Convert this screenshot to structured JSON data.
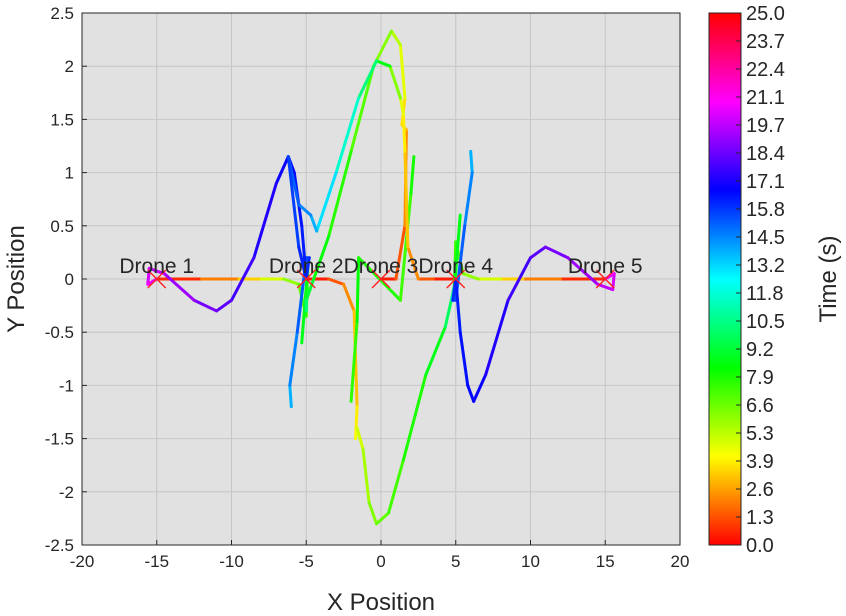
{
  "chart_data": {
    "type": "line",
    "title": "",
    "xlabel": "X Position",
    "ylabel": "Y Position",
    "xlim": [
      -20,
      20
    ],
    "ylim": [
      -2.5,
      2.5
    ],
    "x_ticks": [
      -20,
      -15,
      -10,
      -5,
      0,
      5,
      10,
      15,
      20
    ],
    "y_ticks": [
      -2.5,
      -2,
      -1.5,
      -1,
      -0.5,
      0,
      0.5,
      1,
      1.5,
      2,
      2.5
    ],
    "grid": true,
    "colorbar": {
      "label": "Time (s)",
      "colormap": "hsv",
      "range": [
        0,
        25
      ],
      "ticks": [
        "25.0",
        "23.7",
        "22.4",
        "21.1",
        "19.7",
        "18.4",
        "17.1",
        "15.8",
        "14.5",
        "13.2",
        "11.8",
        "10.5",
        "9.2",
        "7.9",
        "6.6",
        "5.3",
        "3.9",
        "2.6",
        "1.3",
        "0.0"
      ]
    },
    "series": [
      {
        "name": "Drone 1",
        "start": [
          -15,
          0
        ],
        "points": [
          {
            "x": -15.0,
            "y": 0.0,
            "t": 0.0
          },
          {
            "x": -12.0,
            "y": 0.0,
            "t": 1.5
          },
          {
            "x": -9.5,
            "y": 0.0,
            "t": 3.0
          },
          {
            "x": -8.0,
            "y": 0.0,
            "t": 4.5
          },
          {
            "x": -6.5,
            "y": 0.0,
            "t": 6.0
          },
          {
            "x": -5.5,
            "y": -0.05,
            "t": 7.0
          },
          {
            "x": -5.0,
            "y": -0.35,
            "t": 7.8
          },
          {
            "x": -4.9,
            "y": 0.1,
            "t": 8.5
          },
          {
            "x": -5.3,
            "y": -0.6,
            "t": 10.5
          },
          {
            "x": -6.0,
            "y": -1.2,
            "t": 14.5
          },
          {
            "x": -6.1,
            "y": -1.0,
            "t": 15.5
          },
          {
            "x": -5.6,
            "y": -0.5,
            "t": 16.2
          },
          {
            "x": -5.0,
            "y": 0.2,
            "t": 16.8
          },
          {
            "x": -4.8,
            "y": 0.2,
            "t": 17.2
          },
          {
            "x": -5.0,
            "y": 0.0,
            "t": 17.6
          },
          {
            "x": -5.3,
            "y": 0.5,
            "t": 17.8
          },
          {
            "x": -5.8,
            "y": 1.0,
            "t": 18.0
          },
          {
            "x": -6.2,
            "y": 1.15,
            "t": 18.2
          },
          {
            "x": -7.0,
            "y": 0.9,
            "t": 18.5
          },
          {
            "x": -8.5,
            "y": 0.2,
            "t": 19.0
          },
          {
            "x": -10.0,
            "y": -0.2,
            "t": 19.6
          },
          {
            "x": -11.0,
            "y": -0.3,
            "t": 20.0
          },
          {
            "x": -12.5,
            "y": -0.2,
            "t": 20.6
          },
          {
            "x": -14.5,
            "y": 0.05,
            "t": 21.4
          },
          {
            "x": -15.5,
            "y": 0.1,
            "t": 21.8
          },
          {
            "x": -15.6,
            "y": -0.05,
            "t": 22.2
          },
          {
            "x": -15.0,
            "y": 0.0,
            "t": 22.6
          }
        ]
      },
      {
        "name": "Drone 2",
        "start": [
          -5,
          0
        ],
        "points": [
          {
            "x": -5.0,
            "y": 0.0,
            "t": 0.0
          },
          {
            "x": -3.5,
            "y": 0.0,
            "t": 1.0
          },
          {
            "x": -2.5,
            "y": -0.05,
            "t": 2.0
          },
          {
            "x": -1.8,
            "y": -0.3,
            "t": 3.0
          },
          {
            "x": -1.6,
            "y": -1.2,
            "t": 4.0
          },
          {
            "x": -1.7,
            "y": -1.5,
            "t": 4.5
          },
          {
            "x": -1.6,
            "y": -1.4,
            "t": 5.0
          },
          {
            "x": -1.2,
            "y": -1.6,
            "t": 5.8
          },
          {
            "x": -0.8,
            "y": -2.1,
            "t": 6.5
          },
          {
            "x": -0.3,
            "y": -2.3,
            "t": 7.0
          },
          {
            "x": 0.5,
            "y": -2.2,
            "t": 7.6
          },
          {
            "x": 1.5,
            "y": -1.7,
            "t": 8.2
          },
          {
            "x": 3.0,
            "y": -0.9,
            "t": 9.0
          },
          {
            "x": 4.3,
            "y": -0.45,
            "t": 10.0
          },
          {
            "x": 4.7,
            "y": -0.2,
            "t": 11.5
          },
          {
            "x": 5.0,
            "y": 0.0,
            "t": 12.0
          }
        ]
      },
      {
        "name": "Drone 3",
        "start": [
          0,
          0
        ],
        "points": [
          {
            "x": 0.0,
            "y": 0.0,
            "t": 0.0
          },
          {
            "x": 1.0,
            "y": 0.0,
            "t": 1.0
          },
          {
            "x": 1.6,
            "y": 0.5,
            "t": 2.0
          },
          {
            "x": 1.7,
            "y": 1.4,
            "t": 3.0
          },
          {
            "x": 1.4,
            "y": 1.45,
            "t": 3.5
          },
          {
            "x": 1.6,
            "y": 1.7,
            "t": 4.5
          },
          {
            "x": 1.3,
            "y": 2.2,
            "t": 5.5
          },
          {
            "x": 0.7,
            "y": 2.33,
            "t": 6.2
          },
          {
            "x": -0.5,
            "y": 2.0,
            "t": 7.2
          },
          {
            "x": -2.0,
            "y": 1.2,
            "t": 8.0
          },
          {
            "x": -3.5,
            "y": 0.4,
            "t": 8.8
          },
          {
            "x": -4.5,
            "y": 0.0,
            "t": 9.5
          },
          {
            "x": -5.0,
            "y": -0.2,
            "t": 10.5
          },
          {
            "x": -5.0,
            "y": -0.3,
            "t": 12.0
          },
          {
            "x": -2.0,
            "y": -1.15,
            "t": 7.8
          },
          {
            "x": -1.6,
            "y": -0.4,
            "t": 8.6
          },
          {
            "x": -1.5,
            "y": 0.2,
            "t": 9.6
          },
          {
            "x": 1.3,
            "y": -0.2,
            "t": 7.5
          },
          {
            "x": 2.0,
            "y": 0.8,
            "t": 8.5
          },
          {
            "x": 2.2,
            "y": 1.15,
            "t": 9.0
          }
        ]
      },
      {
        "name": "Drone 4",
        "start": [
          5,
          0
        ],
        "points": [
          {
            "x": 5.0,
            "y": 0.0,
            "t": 0.0
          },
          {
            "x": 3.5,
            "y": 0.0,
            "t": 1.0
          },
          {
            "x": 2.5,
            "y": 0.0,
            "t": 2.0
          },
          {
            "x": 1.8,
            "y": 0.3,
            "t": 3.0
          },
          {
            "x": 1.6,
            "y": 1.2,
            "t": 4.0
          },
          {
            "x": 1.5,
            "y": 1.55,
            "t": 4.5
          },
          {
            "x": 1.3,
            "y": 1.7,
            "t": 5.5
          },
          {
            "x": 0.6,
            "y": 2.0,
            "t": 8.0
          },
          {
            "x": -0.3,
            "y": 2.05,
            "t": 10.5
          },
          {
            "x": -1.5,
            "y": 1.7,
            "t": 12.0
          },
          {
            "x": -3.0,
            "y": 1.0,
            "t": 13.5
          },
          {
            "x": -4.3,
            "y": 0.45,
            "t": 14.8
          },
          {
            "x": -4.7,
            "y": 0.6,
            "t": 15.3
          },
          {
            "x": -5.5,
            "y": 0.7,
            "t": 16.2
          },
          {
            "x": -6.2,
            "y": 1.15,
            "t": 16.8
          },
          {
            "x": -5.5,
            "y": 0.3,
            "t": 17.3
          },
          {
            "x": -5.0,
            "y": 0.0,
            "t": 17.8
          }
        ]
      },
      {
        "name": "Drone 5",
        "start": [
          15,
          0
        ],
        "points": [
          {
            "x": 15.0,
            "y": 0.0,
            "t": 0.0
          },
          {
            "x": 12.0,
            "y": 0.0,
            "t": 1.5
          },
          {
            "x": 9.5,
            "y": 0.0,
            "t": 3.0
          },
          {
            "x": 8.0,
            "y": 0.0,
            "t": 4.5
          },
          {
            "x": 6.5,
            "y": 0.0,
            "t": 6.0
          },
          {
            "x": 5.5,
            "y": 0.05,
            "t": 7.0
          },
          {
            "x": 5.0,
            "y": 0.35,
            "t": 7.8
          },
          {
            "x": 4.9,
            "y": -0.1,
            "t": 8.5
          },
          {
            "x": 5.3,
            "y": 0.6,
            "t": 10.5
          },
          {
            "x": 6.0,
            "y": 1.2,
            "t": 14.5
          },
          {
            "x": 6.1,
            "y": 1.0,
            "t": 15.5
          },
          {
            "x": 5.6,
            "y": 0.5,
            "t": 16.2
          },
          {
            "x": 5.0,
            "y": -0.2,
            "t": 16.8
          },
          {
            "x": 4.8,
            "y": -0.2,
            "t": 17.2
          },
          {
            "x": 5.0,
            "y": 0.0,
            "t": 17.6
          },
          {
            "x": 5.3,
            "y": -0.5,
            "t": 17.8
          },
          {
            "x": 5.8,
            "y": -1.0,
            "t": 18.0
          },
          {
            "x": 6.2,
            "y": -1.15,
            "t": 18.2
          },
          {
            "x": 7.0,
            "y": -0.9,
            "t": 18.5
          },
          {
            "x": 8.5,
            "y": -0.2,
            "t": 19.0
          },
          {
            "x": 10.0,
            "y": 0.2,
            "t": 19.6
          },
          {
            "x": 11.0,
            "y": 0.3,
            "t": 20.0
          },
          {
            "x": 12.5,
            "y": 0.2,
            "t": 20.6
          },
          {
            "x": 14.5,
            "y": -0.05,
            "t": 21.4
          },
          {
            "x": 15.5,
            "y": -0.1,
            "t": 21.8
          },
          {
            "x": 15.6,
            "y": 0.05,
            "t": 22.2
          },
          {
            "x": 15.0,
            "y": 0.0,
            "t": 22.6
          }
        ]
      }
    ]
  }
}
